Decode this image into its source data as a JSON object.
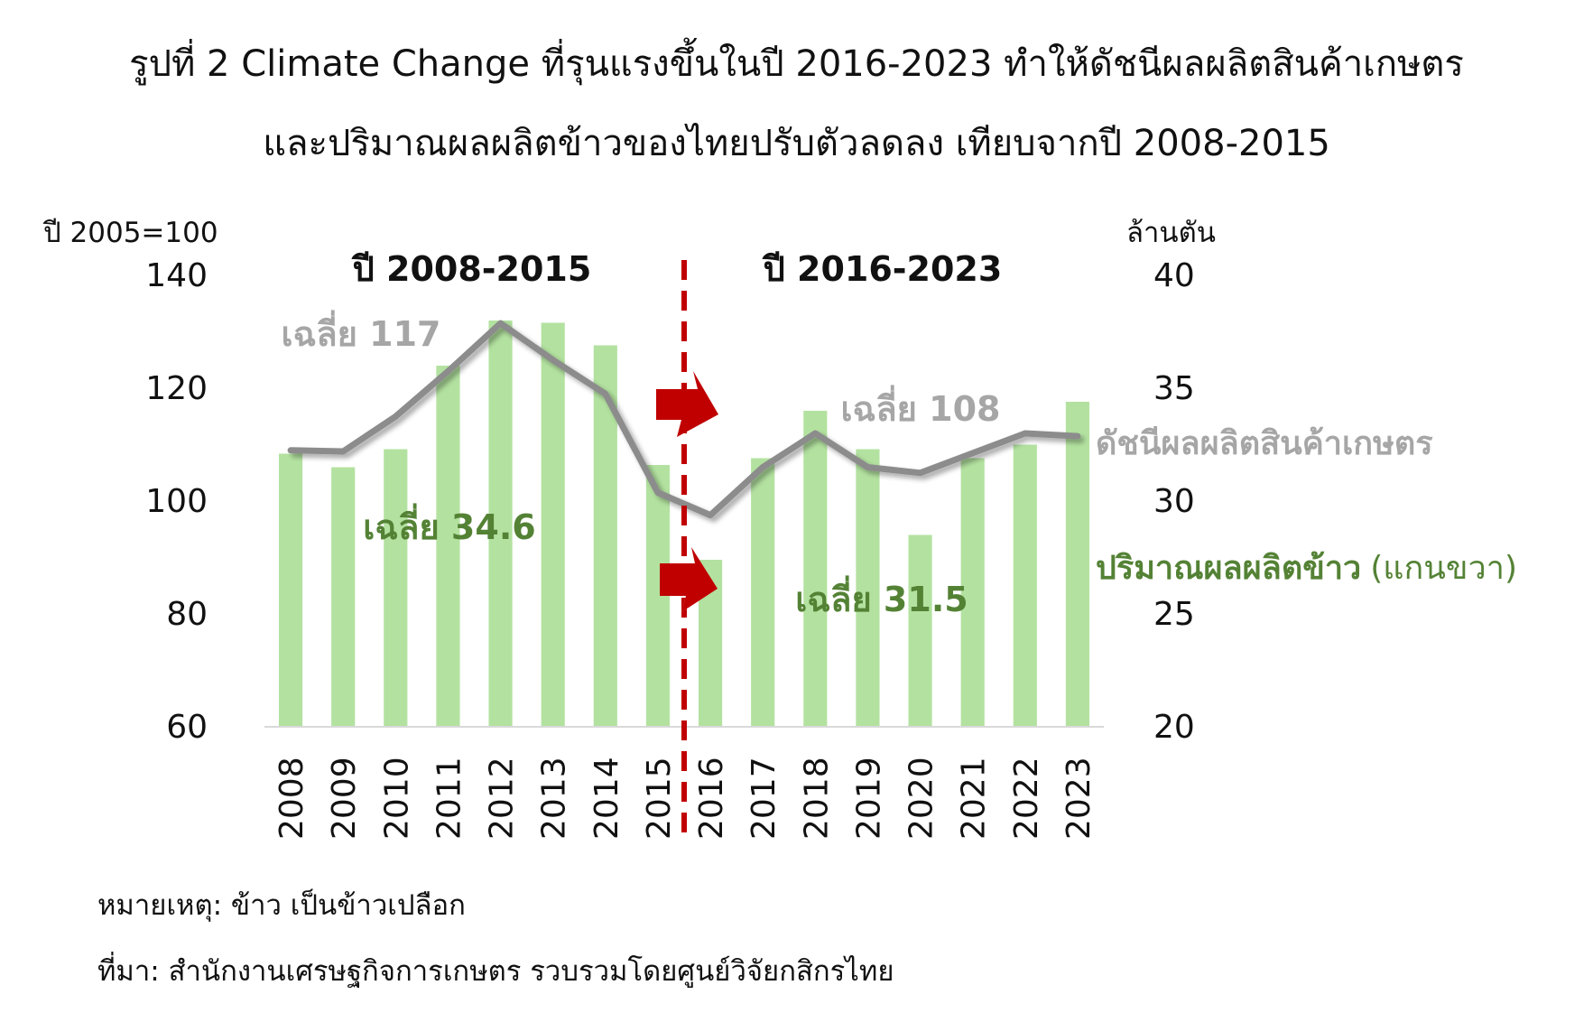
{
  "title_line1": "รูปที่ 2 Climate Change ที่รุนแรงขึ้นในปี 2016-2023 ทำให้ดัชนีผลผลิตสินค้าเกษตร",
  "title_line2": "และปริมาณผลผลิตข้าวของไทยปรับตัวลดลง เทียบจากปี 2008-2015",
  "left_axis_unit": "ปี 2005=100",
  "right_axis_unit": "ล้านตัน",
  "period_labels": [
    "ปี 2008-2015",
    "ปี 2016-2023"
  ],
  "index_avg_labels": [
    "เฉลี่ย 117",
    "เฉลี่ย 108"
  ],
  "rice_avg_labels": [
    "เฉลี่ย 34.6",
    "เฉลี่ย 31.5"
  ],
  "index_series_label": "ดัชนีผลผลิตสินค้าเกษตร",
  "rice_series_label": "ปริมาณผลผลิตข้าว",
  "rice_series_axis_note": "(แกนขวา)",
  "note": "หมายเหตุ: ข้าว เป็นข้าวเปลือก",
  "source": "ที่มา: สำนักงานเศรษฐกิจการเกษตร รวบรวมโดยศูนย์วิจัยกสิกรไทย",
  "colors": {
    "bar": "#b3e2a0",
    "line": "#8c8c8c",
    "divider": "#c00000",
    "arrow": "#c00000",
    "green_text": "#548235",
    "grey_text": "#a6a6a6"
  },
  "chart_data": {
    "type": "bar",
    "categories": [
      "2008",
      "2009",
      "2010",
      "2011",
      "2012",
      "2013",
      "2014",
      "2015",
      "2016",
      "2017",
      "2018",
      "2019",
      "2020",
      "2021",
      "2022",
      "2023"
    ],
    "left_axis": {
      "ticks": [
        60,
        80,
        100,
        120,
        140
      ],
      "ylim": [
        60,
        140
      ]
    },
    "right_axis": {
      "ticks": [
        20,
        25,
        30,
        35,
        40
      ],
      "ylim": [
        20,
        40
      ]
    },
    "series": [
      {
        "name": "ปริมาณผลผลิตข้าว",
        "kind": "bar",
        "axis": "right",
        "values": [
          32.1,
          31.5,
          32.3,
          36.0,
          38.0,
          37.9,
          36.9,
          31.6,
          27.4,
          31.9,
          34.0,
          32.3,
          28.5,
          31.9,
          32.5,
          34.4
        ]
      },
      {
        "name": "ดัชนีผลผลิตสินค้าเกษตร",
        "kind": "line",
        "axis": "left",
        "values": [
          109,
          108.8,
          115,
          123,
          131.5,
          125,
          119,
          101.5,
          97.5,
          106,
          112,
          106,
          105,
          108.5,
          112,
          111.5
        ]
      }
    ],
    "divider_between": [
      "2015",
      "2016"
    ]
  }
}
